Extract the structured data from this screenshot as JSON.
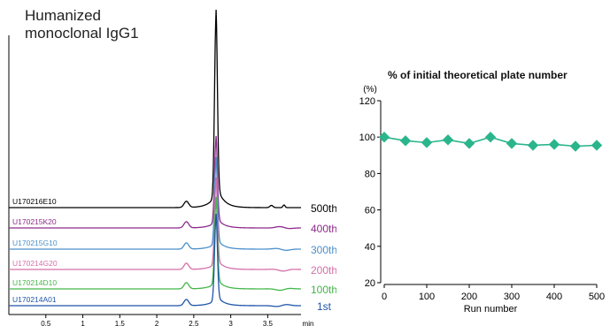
{
  "chart_data": [
    {
      "type": "line",
      "title": [
        "Humanized",
        "monoclonal IgG1"
      ],
      "xlabel": "min",
      "x_ticks": [
        "0.5",
        "1",
        "1.5",
        "2",
        "2.5",
        "3",
        "3.5"
      ],
      "traces": [
        {
          "sample": "U170216E10",
          "run": "500th",
          "color": "#000000"
        },
        {
          "sample": "U170215K20",
          "run": "400th",
          "color": "#8e2a8c"
        },
        {
          "sample": "U170215G10",
          "run": "300th",
          "color": "#4a8fc9"
        },
        {
          "sample": "U170214G20",
          "run": "200th",
          "color": "#d56fa9"
        },
        {
          "sample": "U170214D10",
          "run": "100th",
          "color": "#43b649"
        },
        {
          "sample": "U170214A01",
          "run": "1st",
          "color": "#1f55a8"
        }
      ],
      "main_peak_retention_min": 2.8,
      "minor_peak_retention_min": 2.4
    },
    {
      "type": "line",
      "title": "% of initial theoretical plate number",
      "ylabel": "(%)",
      "xlabel": "Run number",
      "xlim": [
        0,
        500
      ],
      "ylim": [
        20,
        120
      ],
      "x_ticks": [
        "0",
        "100",
        "200",
        "300",
        "400",
        "500"
      ],
      "y_ticks": [
        "20",
        "40",
        "60",
        "80",
        "100",
        "120"
      ],
      "series": [
        {
          "color": "#2bb58c",
          "x": [
            0,
            50,
            100,
            150,
            200,
            250,
            300,
            350,
            400,
            450,
            500
          ],
          "y": [
            100,
            98,
            97,
            98.5,
            96.5,
            100,
            96.5,
            95.5,
            96,
            95,
            95.5
          ]
        }
      ]
    }
  ]
}
